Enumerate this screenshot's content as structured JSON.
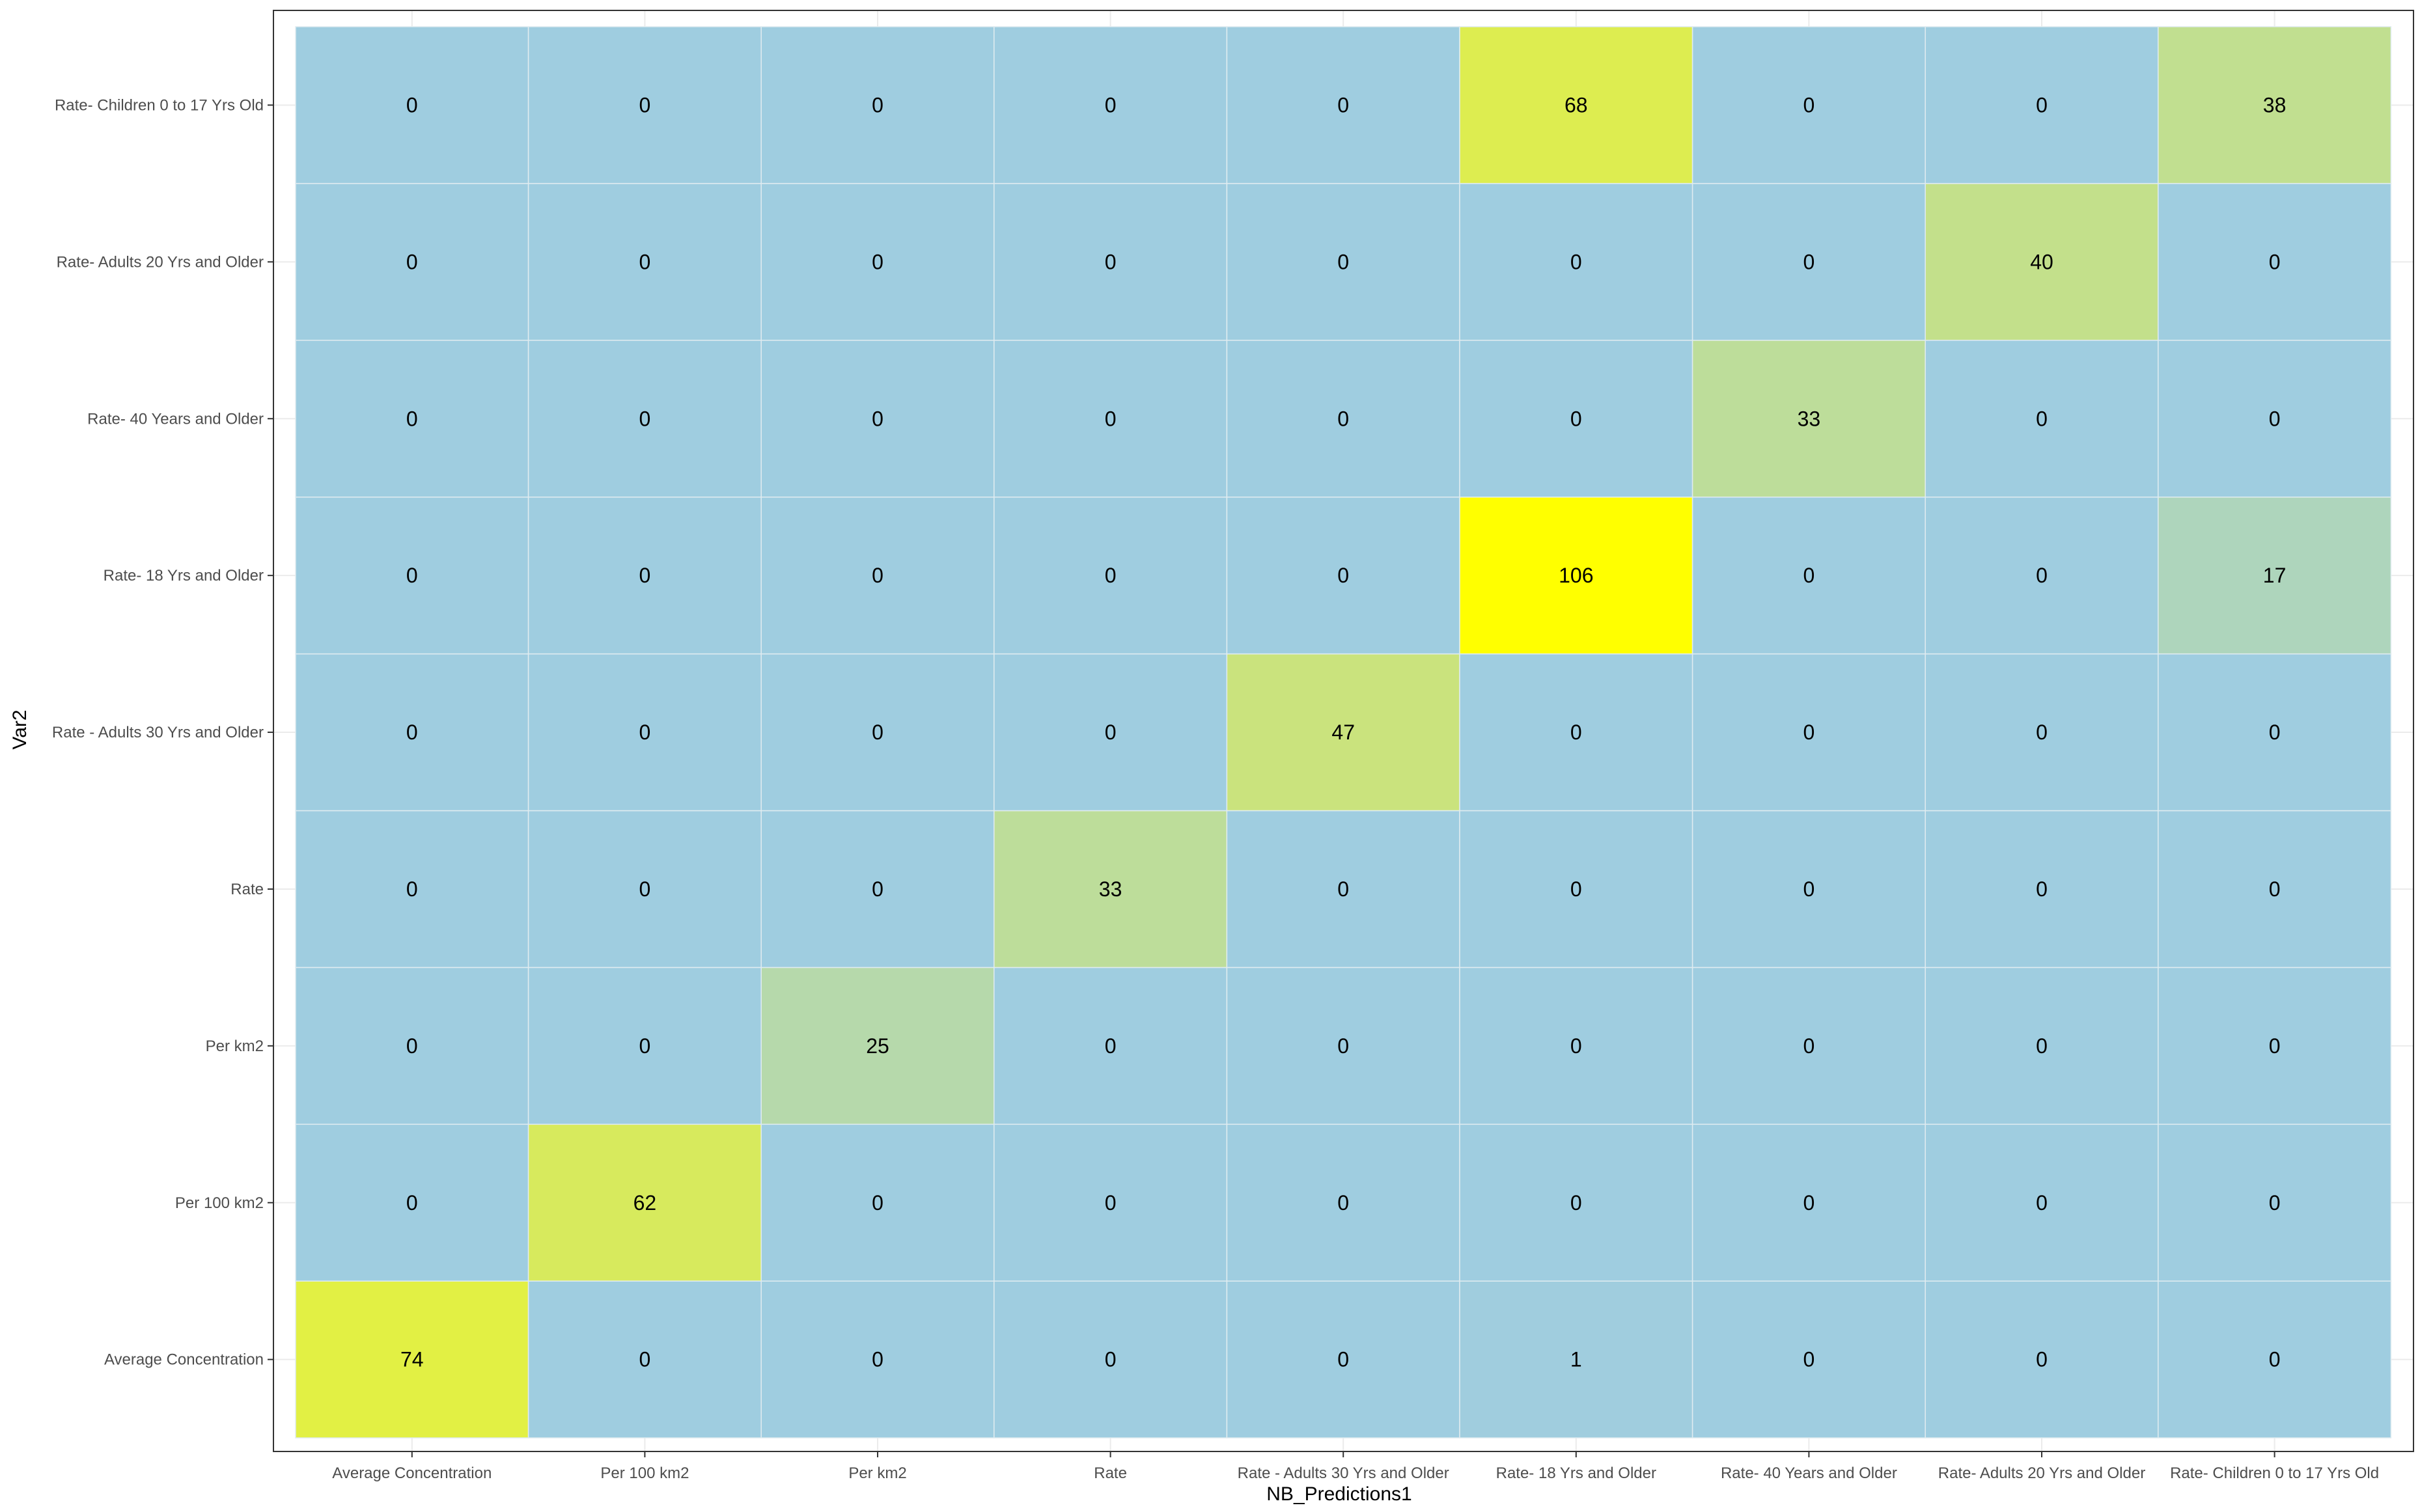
{
  "chart_data": {
    "type": "heatmap",
    "xlabel": "NB_Predictions1",
    "ylabel": "Var2",
    "x_categories": [
      "Average Concentration",
      "Per 100 km2",
      "Per km2",
      "Rate",
      "Rate - Adults 30 Yrs and Older",
      "Rate- 18 Yrs and Older",
      "Rate- 40 Years and Older",
      "Rate- Adults 20 Yrs and Older",
      "Rate- Children 0 to 17 Yrs Old"
    ],
    "y_categories": [
      "Average Concentration",
      "Per 100 km2",
      "Per km2",
      "Rate",
      "Rate - Adults 30 Yrs and Older",
      "Rate- 18 Yrs and Older",
      "Rate- 40 Years and Older",
      "Rate- Adults 20 Yrs and Older",
      "Rate- Children 0 to 17 Yrs Old"
    ],
    "values": [
      [
        74,
        0,
        0,
        0,
        0,
        1,
        0,
        0,
        0
      ],
      [
        0,
        62,
        0,
        0,
        0,
        0,
        0,
        0,
        0
      ],
      [
        0,
        0,
        25,
        0,
        0,
        0,
        0,
        0,
        0
      ],
      [
        0,
        0,
        0,
        33,
        0,
        0,
        0,
        0,
        0
      ],
      [
        0,
        0,
        0,
        0,
        47,
        0,
        0,
        0,
        0
      ],
      [
        0,
        0,
        0,
        0,
        0,
        106,
        0,
        0,
        17
      ],
      [
        0,
        0,
        0,
        0,
        0,
        0,
        33,
        0,
        0
      ],
      [
        0,
        0,
        0,
        0,
        0,
        0,
        0,
        40,
        0
      ],
      [
        0,
        0,
        0,
        0,
        0,
        68,
        0,
        0,
        38
      ]
    ],
    "color_low": "#9fcde0",
    "color_high": "#ffff00",
    "grid": true,
    "legend": "none"
  }
}
